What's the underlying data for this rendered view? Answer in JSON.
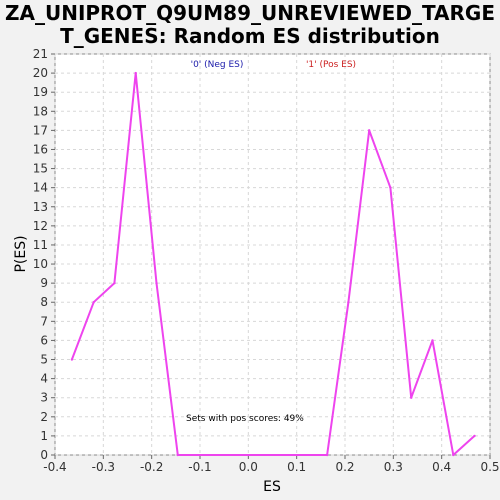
{
  "chart_data": {
    "type": "line",
    "title_line1": "ZA_UNIPROT_Q9UM89_UNREVIEWED_TARGE",
    "title_line2": "T_GENES: Random ES distribution",
    "xlabel": "ES",
    "ylabel": "P(ES)",
    "xlim": [
      -0.4,
      0.5
    ],
    "ylim": [
      0,
      21
    ],
    "xticks": [
      "-0.4",
      "-0.3",
      "-0.2",
      "-0.1",
      "0.0",
      "0.1",
      "0.2",
      "0.3",
      "0.4",
      "0.5"
    ],
    "yticks": [
      "0",
      "1",
      "2",
      "3",
      "4",
      "5",
      "6",
      "7",
      "8",
      "9",
      "10",
      "11",
      "12",
      "13",
      "14",
      "15",
      "16",
      "17",
      "18",
      "19",
      "20",
      "21"
    ],
    "grid": true,
    "legend": [
      {
        "label": "'0' (Neg ES)",
        "color": "#1a1aaa"
      },
      {
        "label": "'1' (Pos ES)",
        "color": "#cc2222"
      }
    ],
    "annotation": "Sets with pos scores: 49%",
    "series": [
      {
        "color": "#ee44ee",
        "x": [
          -0.365,
          -0.32,
          -0.277,
          -0.233,
          -0.19,
          -0.146,
          0.163,
          0.207,
          0.25,
          0.294,
          0.337,
          0.381,
          0.424,
          0.468
        ],
        "y": [
          5,
          8,
          9,
          20,
          9,
          0,
          0,
          8,
          17,
          14,
          3,
          6,
          0,
          1
        ]
      }
    ]
  }
}
